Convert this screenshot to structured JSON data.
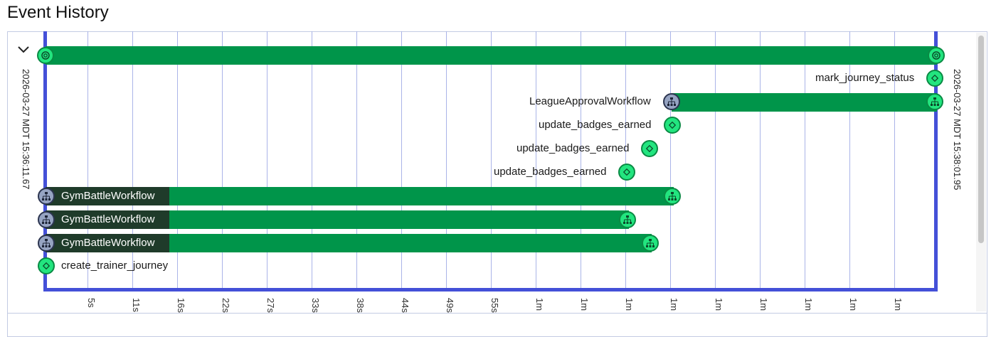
{
  "page": {
    "title": "Event History"
  },
  "timeline": {
    "start_label": "2026-03-27 MDT 15:36:11.67",
    "end_label": "2026-03-27 MDT 15:38:01.95",
    "ticks": [
      "5s",
      "11s",
      "16s",
      "22s",
      "27s",
      "33s",
      "38s",
      "44s",
      "49s",
      "55s",
      "1m",
      "1m",
      "1m",
      "1m",
      "1m",
      "1m",
      "1m",
      "1m",
      "1m"
    ]
  },
  "rows": [
    {
      "type": "workflow-run",
      "label": "",
      "icon": "workflow-run-icon"
    },
    {
      "type": "activity",
      "label": "mark_journey_status",
      "icon": "activity-icon"
    },
    {
      "type": "child-workflow",
      "label": "LeagueApprovalWorkflow",
      "icon": "child-workflow-icon"
    },
    {
      "type": "activity",
      "label": "update_badges_earned",
      "icon": "activity-icon"
    },
    {
      "type": "activity",
      "label": "update_badges_earned",
      "icon": "activity-icon"
    },
    {
      "type": "activity",
      "label": "update_badges_earned",
      "icon": "activity-icon"
    },
    {
      "type": "child-workflow",
      "label": "GymBattleWorkflow",
      "icon": "child-workflow-icon"
    },
    {
      "type": "child-workflow",
      "label": "GymBattleWorkflow",
      "icon": "child-workflow-icon"
    },
    {
      "type": "child-workflow",
      "label": "GymBattleWorkflow",
      "icon": "child-workflow-icon"
    },
    {
      "type": "activity",
      "label": "create_trainer_journey",
      "icon": "activity-icon"
    }
  ],
  "colors": {
    "bar": "#00954a",
    "bar_dark": "#1f3b2a",
    "frame": "#4450d8",
    "node": "#22e57f",
    "node_child": "#96a4c2"
  }
}
